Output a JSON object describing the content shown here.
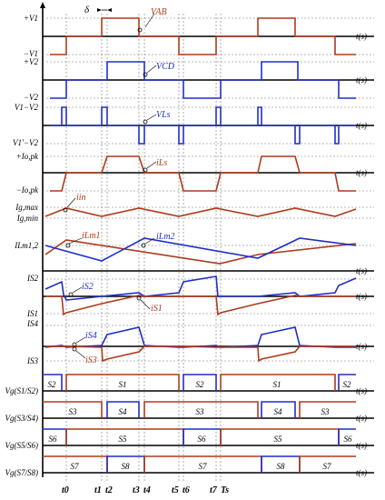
{
  "y_labels": {
    "v1_pos": "+V1",
    "v1_neg": "−V1",
    "v2_pos": "+V2",
    "v2_neg": "−V2",
    "v1_minus_v2": "V1−V2",
    "v1_minus_v2_neg": "V1'−V2",
    "i_pk_pos": "+Io,pk",
    "i_pk_neg": "−Io,pk",
    "ig_max": "Ig,max",
    "ig_min": "Ig,min",
    "ilm": "ILm1,2",
    "is2": "IS2",
    "is1": "IS1",
    "is4": "IS4",
    "is3": "IS3",
    "vg_12": "Vg(S1/S2)",
    "vg_34": "Vg(S3/S4)",
    "vg_56": "Vg(S5/S6)",
    "vg_78": "Vg(S7/S8)"
  },
  "axis_label": "t(s)",
  "delta_label": "δ",
  "callouts": {
    "vab": "VAB",
    "vcd": "VCD",
    "vls": "VLs",
    "ils": "iLs",
    "iin": "iin",
    "ilm1": "iLm1",
    "ilm2": "iLm2",
    "is2": "iS2",
    "is1": "iS1",
    "is4": "iS4",
    "is3": "iS3"
  },
  "time_labels": [
    "t0",
    "t1",
    "t2",
    "t3",
    "t4",
    "t5",
    "t6",
    "t7",
    "Ts"
  ],
  "gate_rows": [
    [
      "S2",
      "S1",
      "S2",
      "S1",
      "S2"
    ],
    [
      "S3",
      "S4",
      "S3",
      "S4",
      "S3"
    ],
    [
      "S6",
      "S5",
      "S6",
      "S5",
      "S6"
    ],
    [
      "S7",
      "S8",
      "S7",
      "S8",
      "S7"
    ]
  ],
  "colors": {
    "red": "#b03a1a",
    "blue": "#1f2fc8"
  }
}
